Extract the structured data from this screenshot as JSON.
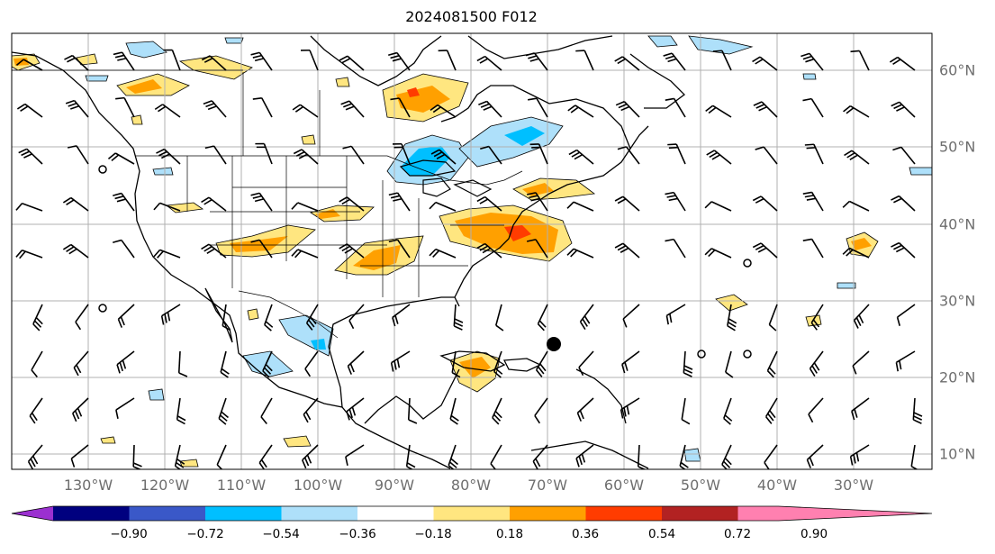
{
  "title": "2024081500 F012",
  "lon_ticks": [
    "130°W",
    "120°W",
    "110°W",
    "100°W",
    "90°W",
    "80°W",
    "70°W",
    "60°W",
    "50°W",
    "40°W",
    "30°W"
  ],
  "lat_ticks": [
    "60°N",
    "50°N",
    "40°N",
    "30°N",
    "20°N",
    "10°N"
  ],
  "colorbar": {
    "ticks": [
      "−0.90",
      "−0.72",
      "−0.54",
      "−0.36",
      "−0.18",
      "0.18",
      "0.36",
      "0.54",
      "0.72",
      "0.90"
    ],
    "colors": [
      "#9b30d0",
      "#00007f",
      "#3a58c8",
      "#00bfff",
      "#aee0fa",
      "#ffffff",
      "#ffe680",
      "#ffa000",
      "#ff3c00",
      "#b22222",
      "#ff80b0"
    ]
  },
  "map": {
    "projection": "cylindrical",
    "lon_range": [
      -135,
      -15
    ],
    "lat_range": [
      8,
      65
    ],
    "grid": true,
    "features": [
      "coastlines",
      "country borders",
      "US state borders",
      "wind barbs",
      "shaded field"
    ],
    "marker": "black-dot-near-69W-24N"
  }
}
